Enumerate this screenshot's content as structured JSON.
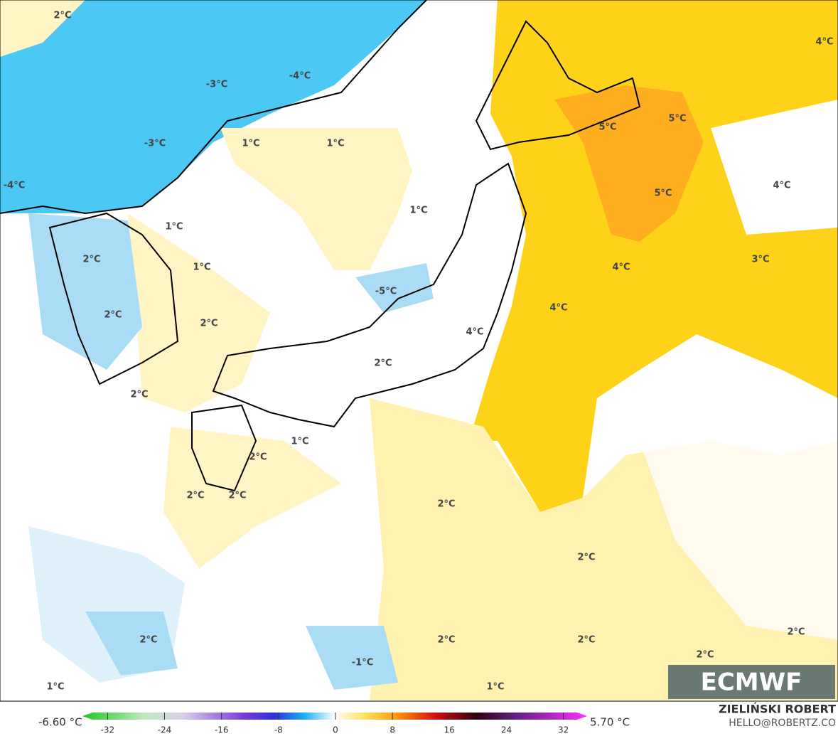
{
  "map": {
    "labels": [
      "2°C",
      "4°C",
      "-4°C",
      "-3°C",
      "5°C",
      "5°C",
      "1°C",
      "1°C",
      "-3°C",
      "-4°C",
      "4°C",
      "5°C",
      "1°C",
      "1°C",
      "2°C",
      "3°C",
      "4°C",
      "1°C",
      "-5°C",
      "4°C",
      "2°C",
      "2°C",
      "4°C",
      "2°C",
      "2°C",
      "1°C",
      "2°C",
      "2°C",
      "2°C",
      "2°C",
      "2°C",
      "2°C",
      "2°C",
      "2°C",
      "2°C",
      "2°C",
      "-1°C",
      "1°C",
      "1°C"
    ]
  },
  "logo": "ECMWF",
  "colorbar": {
    "min_label": "-6.60 °C",
    "max_label": "5.70 °C",
    "ticks": [
      -32,
      -24,
      -16,
      -8,
      0,
      8,
      16,
      24,
      32
    ]
  },
  "credit": {
    "name": "ZIELIŃSKI ROBERT",
    "email": "HELLO@ROBERTZ.CO"
  }
}
